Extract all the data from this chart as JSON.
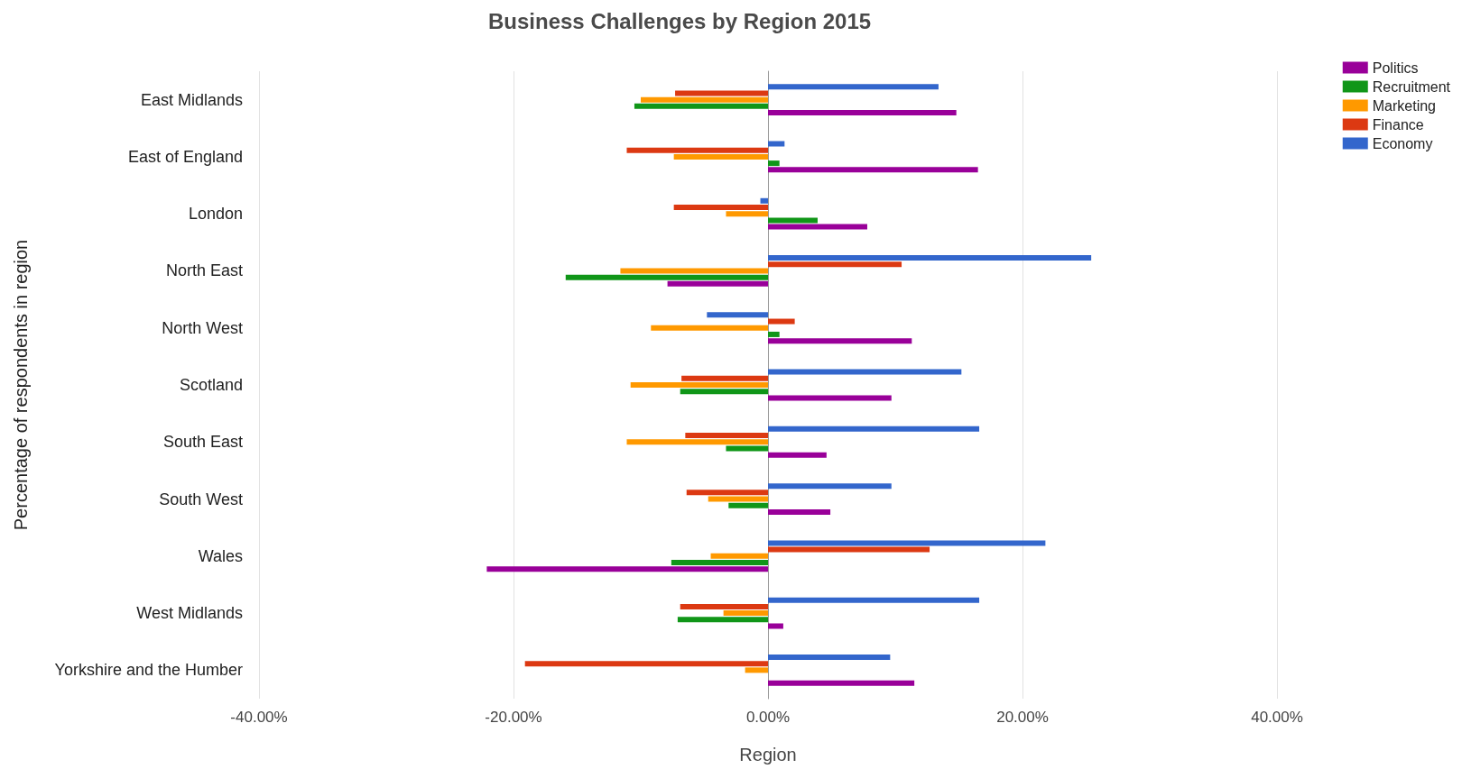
{
  "chart_data": {
    "type": "bar",
    "orientation": "horizontal",
    "title": "Business Challenges by Region 2015",
    "xlabel": "Region",
    "ylabel": "Percentage of respondents in region",
    "categories": [
      "East Midlands",
      "East of England",
      "London",
      "North East",
      "North West",
      "Scotland",
      "South East",
      "South West",
      "Wales",
      "West Midlands",
      "Yorkshire and the Humber"
    ],
    "series": [
      {
        "name": "Politics",
        "color": "#990099",
        "values": [
          14.8,
          16.5,
          7.8,
          -7.9,
          11.3,
          9.7,
          4.6,
          4.9,
          -22.1,
          1.2,
          11.5
        ]
      },
      {
        "name": "Recruitment",
        "color": "#109618",
        "values": [
          -10.5,
          0.9,
          3.9,
          -15.9,
          0.9,
          -6.9,
          -3.3,
          -3.1,
          -7.6,
          -7.1,
          null
        ]
      },
      {
        "name": "Marketing",
        "color": "#ff9900",
        "values": [
          -10.0,
          -7.4,
          -3.3,
          -11.6,
          -9.2,
          -10.8,
          -11.1,
          -4.7,
          -4.5,
          -3.5,
          -1.8
        ]
      },
      {
        "name": "Finance",
        "color": "#dc3912",
        "values": [
          -7.3,
          -11.1,
          -7.4,
          10.5,
          2.1,
          -6.8,
          -6.5,
          -6.4,
          12.7,
          -6.9,
          -19.1
        ]
      },
      {
        "name": "Economy",
        "color": "#3366cc",
        "values": [
          13.4,
          1.3,
          -0.6,
          25.4,
          -4.8,
          15.2,
          16.6,
          9.7,
          21.8,
          16.6,
          9.6
        ]
      }
    ],
    "xlim": [
      -40,
      40
    ],
    "xticks": [
      {
        "value": -40,
        "label": "-40.00%"
      },
      {
        "value": -20,
        "label": "-20.00%"
      },
      {
        "value": 0,
        "label": "0.00%"
      },
      {
        "value": 20,
        "label": "20.00%"
      },
      {
        "value": 40,
        "label": "40.00%"
      }
    ],
    "grid": "x",
    "legend": "top right"
  }
}
